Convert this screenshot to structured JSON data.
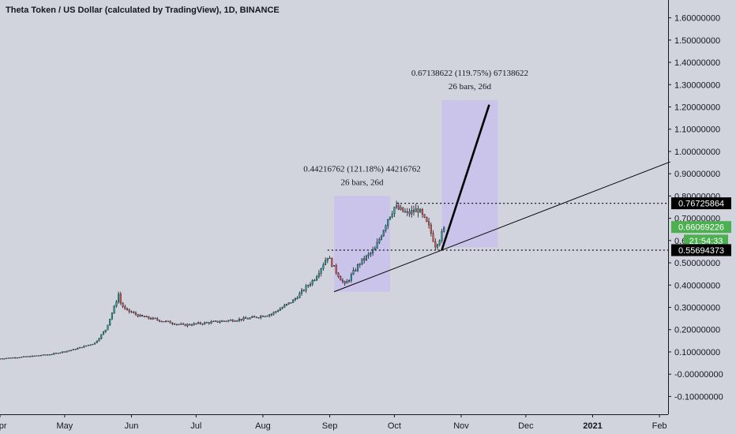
{
  "chart_data": {
    "type": "candlestick",
    "title": "Theta Token / US Dollar (calculated by TradingView), 1D, BINANCE",
    "y_ticks": [
      -0.1,
      0.0,
      0.1,
      0.2,
      0.3,
      0.4,
      0.5,
      0.6,
      0.7,
      0.8,
      0.9,
      1.0,
      1.1,
      1.2,
      1.3,
      1.4,
      1.5,
      1.6
    ],
    "y_tick_labels": [
      "-0.10000000",
      "-0.00000000",
      "0.10000000",
      "0.20000000",
      "0.30000000",
      "0.40000000",
      "0.50000000",
      "0.6",
      "0.70000000",
      "0.80000000",
      "0.90000000",
      "1.00000000",
      "1.10000000",
      "1.20000000",
      "1.30000000",
      "1.40000000",
      "1.50000000",
      "1.60000000"
    ],
    "ylim": [
      -0.18,
      1.68
    ],
    "x_range": [
      "2020-04-01",
      "2021-02-05"
    ],
    "x_ticks": [
      {
        "date": "2020-04-01",
        "label": "Apr"
      },
      {
        "date": "2020-05-01",
        "label": "May"
      },
      {
        "date": "2020-06-01",
        "label": "Jun"
      },
      {
        "date": "2020-07-01",
        "label": "Jul"
      },
      {
        "date": "2020-08-01",
        "label": "Aug"
      },
      {
        "date": "2020-09-01",
        "label": "Sep"
      },
      {
        "date": "2020-10-01",
        "label": "Oct"
      },
      {
        "date": "2020-11-01",
        "label": "Nov"
      },
      {
        "date": "2020-12-01",
        "label": "Dec"
      },
      {
        "date": "2021-01-01",
        "label": "2021",
        "bold": true
      },
      {
        "date": "2021-02-01",
        "label": "Feb"
      }
    ],
    "price_path": [
      [
        "2020-04-01",
        0.07
      ],
      [
        "2020-04-15",
        0.08
      ],
      [
        "2020-04-25",
        0.09
      ],
      [
        "2020-05-05",
        0.11
      ],
      [
        "2020-05-15",
        0.14
      ],
      [
        "2020-05-20",
        0.2
      ],
      [
        "2020-05-24",
        0.3
      ],
      [
        "2020-05-26",
        0.36
      ],
      [
        "2020-05-27",
        0.32
      ],
      [
        "2020-05-29",
        0.29
      ],
      [
        "2020-06-05",
        0.26
      ],
      [
        "2020-06-15",
        0.24
      ],
      [
        "2020-06-25",
        0.22
      ],
      [
        "2020-07-05",
        0.23
      ],
      [
        "2020-07-15",
        0.24
      ],
      [
        "2020-07-25",
        0.25
      ],
      [
        "2020-08-05",
        0.27
      ],
      [
        "2020-08-15",
        0.33
      ],
      [
        "2020-08-25",
        0.43
      ],
      [
        "2020-08-31",
        0.53
      ],
      [
        "2020-09-04",
        0.46
      ],
      [
        "2020-09-08",
        0.4
      ],
      [
        "2020-09-15",
        0.5
      ],
      [
        "2020-09-22",
        0.56
      ],
      [
        "2020-09-28",
        0.7
      ],
      [
        "2020-10-01",
        0.75
      ],
      [
        "2020-10-07",
        0.72
      ],
      [
        "2020-10-12",
        0.74
      ],
      [
        "2020-10-17",
        0.66
      ],
      [
        "2020-10-20",
        0.58
      ],
      [
        "2020-10-22",
        0.61
      ],
      [
        "2020-10-24",
        0.65
      ]
    ],
    "annotations": [
      {
        "text": "0.44216762 (121.18%) 44216762",
        "sub": "26 bars, 26d"
      },
      {
        "text": "0.67138622 (119.75%) 67138622",
        "sub": "26 bars, 26d"
      }
    ],
    "projection_boxes": [
      {
        "x0": "2020-09-03",
        "x1": "2020-09-29",
        "y0": 0.37,
        "y1": 0.8
      },
      {
        "x0": "2020-10-23",
        "x1": "2020-11-18",
        "y0": 0.57,
        "y1": 1.23
      }
    ],
    "projection_line": {
      "x0": "2020-10-23",
      "y0": 0.557,
      "x1": "2020-11-14",
      "y1": 1.21
    },
    "trend_line": {
      "x0": "2020-09-03",
      "y0": 0.37,
      "x1": "2020-10-23",
      "y1": 0.557,
      "extends_to": "2021-02-06"
    },
    "dotted_levels": [
      {
        "value": 0.76725864,
        "from": "2020-10-02"
      },
      {
        "value": 0.55694373,
        "from": "2020-08-31"
      }
    ],
    "price_tags": [
      {
        "label": "0.76725864",
        "value": 0.76725864,
        "color": "#000000"
      },
      {
        "label": "0.66069226",
        "value": 0.66069226,
        "color": "#4caf50"
      },
      {
        "label": "21:54:33",
        "value": 0.6,
        "color": "#4caf50"
      },
      {
        "label": "0.55694373",
        "value": 0.55694373,
        "color": "#000000"
      }
    ],
    "colors": {
      "background": "#d1d4dc",
      "up": "#26a69a",
      "down": "#ef5350",
      "box": "#c9c0ec",
      "line": "#000000"
    },
    "grid": false
  }
}
